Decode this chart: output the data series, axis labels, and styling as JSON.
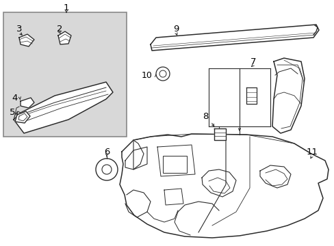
{
  "bg_color": "#ffffff",
  "box_bg": "#d8d8d8",
  "line_color": "#2a2a2a",
  "label_color": "#000000",
  "fig_w": 4.89,
  "fig_h": 3.6,
  "dpi": 100,
  "font_size": 9.5
}
